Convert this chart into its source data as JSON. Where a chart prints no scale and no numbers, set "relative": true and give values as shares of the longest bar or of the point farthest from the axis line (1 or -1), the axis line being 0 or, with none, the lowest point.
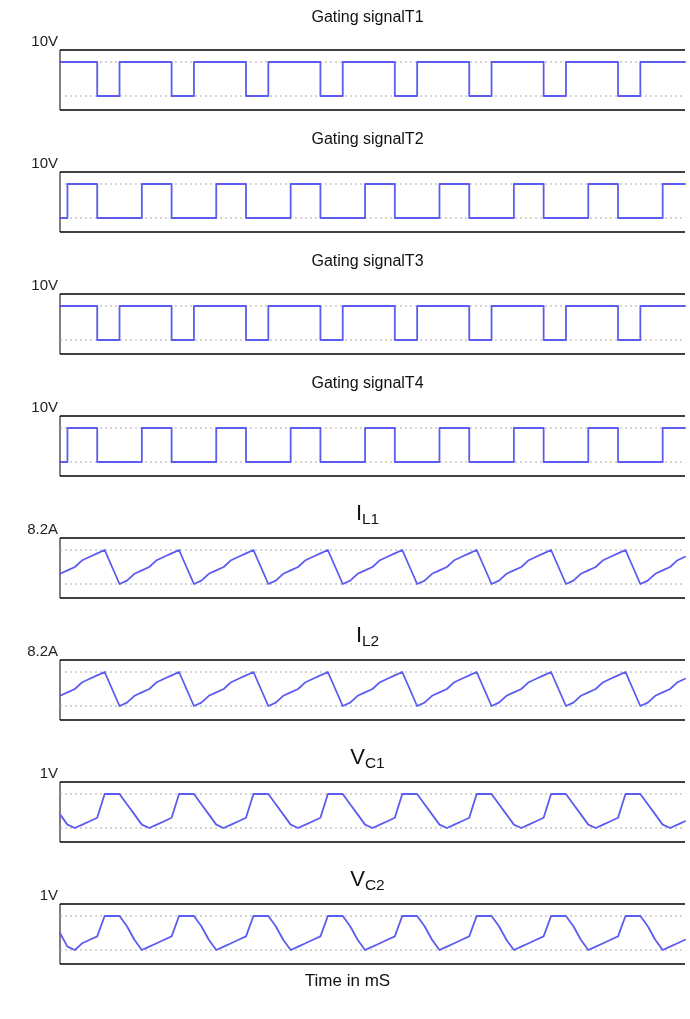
{
  "chart_data": [
    {
      "type": "step",
      "title": "Gating signalT1",
      "relative": true,
      "grid": "y",
      "annotations": [
        "10V"
      ],
      "categories": [
        null,
        null,
        null,
        null,
        null,
        null,
        null,
        null,
        null,
        null,
        null,
        null,
        null,
        null,
        null,
        null,
        null,
        null,
        null,
        null,
        null,
        null,
        null,
        null,
        null,
        null,
        null,
        null,
        null,
        null,
        null,
        null,
        null,
        null,
        null,
        null,
        null,
        null,
        null,
        null,
        null,
        null,
        null,
        null,
        null,
        null,
        null,
        null,
        null,
        null,
        null,
        null,
        null,
        null,
        null,
        null,
        null,
        null,
        null,
        null,
        null,
        null,
        null,
        null,
        null,
        null,
        null,
        null,
        null,
        null,
        null,
        null,
        null,
        null,
        null,
        null,
        null,
        null,
        null,
        null,
        null,
        null,
        null,
        null,
        null
      ],
      "series": [
        {
          "color": "#5c5cf0",
          "values": [
            1,
            1,
            1,
            1,
            1,
            0,
            0,
            0,
            1,
            1,
            1,
            1,
            1,
            1,
            1,
            0,
            0,
            0,
            1,
            1,
            1,
            1,
            1,
            1,
            1,
            0,
            0,
            0,
            1,
            1,
            1,
            1,
            1,
            1,
            1,
            0,
            0,
            0,
            1,
            1,
            1,
            1,
            1,
            1,
            1,
            0,
            0,
            0,
            1,
            1,
            1,
            1,
            1,
            1,
            1,
            0,
            0,
            0,
            1,
            1,
            1,
            1,
            1,
            1,
            1,
            0,
            0,
            0,
            1,
            1,
            1,
            1,
            1,
            1,
            1,
            0,
            0,
            0,
            1,
            1,
            1,
            1,
            1,
            1,
            1
          ]
        }
      ]
    },
    {
      "type": "step",
      "title": "Gating signalT2",
      "relative": true,
      "grid": "y",
      "annotations": [
        "10V"
      ],
      "categories": [
        null,
        null,
        null,
        null,
        null,
        null,
        null,
        null,
        null,
        null,
        null,
        null,
        null,
        null,
        null,
        null,
        null,
        null,
        null,
        null,
        null,
        null,
        null,
        null,
        null,
        null,
        null,
        null,
        null,
        null,
        null,
        null,
        null,
        null,
        null,
        null,
        null,
        null,
        null,
        null,
        null,
        null,
        null,
        null,
        null,
        null,
        null,
        null,
        null,
        null,
        null,
        null,
        null,
        null,
        null,
        null,
        null,
        null,
        null,
        null,
        null,
        null,
        null,
        null,
        null,
        null,
        null,
        null,
        null,
        null,
        null,
        null,
        null,
        null,
        null,
        null,
        null,
        null,
        null,
        null,
        null,
        null,
        null,
        null,
        null
      ],
      "series": [
        {
          "color": "#5c5cf0",
          "values": [
            0,
            1,
            1,
            1,
            1,
            0,
            0,
            0,
            0,
            0,
            0,
            1,
            1,
            1,
            1,
            0,
            0,
            0,
            0,
            0,
            0,
            1,
            1,
            1,
            1,
            0,
            0,
            0,
            0,
            0,
            0,
            1,
            1,
            1,
            1,
            0,
            0,
            0,
            0,
            0,
            0,
            1,
            1,
            1,
            1,
            0,
            0,
            0,
            0,
            0,
            0,
            1,
            1,
            1,
            1,
            0,
            0,
            0,
            0,
            0,
            0,
            1,
            1,
            1,
            1,
            0,
            0,
            0,
            0,
            0,
            0,
            1,
            1,
            1,
            1,
            0,
            0,
            0,
            0,
            0,
            0,
            1,
            1,
            1,
            1
          ]
        }
      ]
    },
    {
      "type": "step",
      "title": "Gating signalT3",
      "relative": true,
      "grid": "y",
      "annotations": [
        "10V"
      ],
      "categories": [
        null,
        null,
        null,
        null,
        null,
        null,
        null,
        null,
        null,
        null,
        null,
        null,
        null,
        null,
        null,
        null,
        null,
        null,
        null,
        null,
        null,
        null,
        null,
        null,
        null,
        null,
        null,
        null,
        null,
        null,
        null,
        null,
        null,
        null,
        null,
        null,
        null,
        null,
        null,
        null,
        null,
        null,
        null,
        null,
        null,
        null,
        null,
        null,
        null,
        null,
        null,
        null,
        null,
        null,
        null,
        null,
        null,
        null,
        null,
        null,
        null,
        null,
        null,
        null,
        null,
        null,
        null,
        null,
        null,
        null,
        null,
        null,
        null,
        null,
        null,
        null,
        null,
        null,
        null,
        null,
        null,
        null,
        null,
        null,
        null
      ],
      "series": [
        {
          "color": "#5c5cf0",
          "values": [
            1,
            1,
            1,
            1,
            1,
            0,
            0,
            0,
            1,
            1,
            1,
            1,
            1,
            1,
            1,
            0,
            0,
            0,
            1,
            1,
            1,
            1,
            1,
            1,
            1,
            0,
            0,
            0,
            1,
            1,
            1,
            1,
            1,
            1,
            1,
            0,
            0,
            0,
            1,
            1,
            1,
            1,
            1,
            1,
            1,
            0,
            0,
            0,
            1,
            1,
            1,
            1,
            1,
            1,
            1,
            0,
            0,
            0,
            1,
            1,
            1,
            1,
            1,
            1,
            1,
            0,
            0,
            0,
            1,
            1,
            1,
            1,
            1,
            1,
            1,
            0,
            0,
            0,
            1,
            1,
            1,
            1,
            1,
            1,
            1
          ]
        }
      ]
    },
    {
      "type": "step",
      "title": "Gating signalT4",
      "relative": true,
      "grid": "y",
      "annotations": [
        "10V"
      ],
      "categories": [
        null,
        null,
        null,
        null,
        null,
        null,
        null,
        null,
        null,
        null,
        null,
        null,
        null,
        null,
        null,
        null,
        null,
        null,
        null,
        null,
        null,
        null,
        null,
        null,
        null,
        null,
        null,
        null,
        null,
        null,
        null,
        null,
        null,
        null,
        null,
        null,
        null,
        null,
        null,
        null,
        null,
        null,
        null,
        null,
        null,
        null,
        null,
        null,
        null,
        null,
        null,
        null,
        null,
        null,
        null,
        null,
        null,
        null,
        null,
        null,
        null,
        null,
        null,
        null,
        null,
        null,
        null,
        null,
        null,
        null,
        null,
        null,
        null,
        null,
        null,
        null,
        null,
        null,
        null,
        null,
        null,
        null,
        null,
        null,
        null
      ],
      "series": [
        {
          "color": "#5c5cf0",
          "values": [
            0,
            1,
            1,
            1,
            1,
            0,
            0,
            0,
            0,
            0,
            0,
            1,
            1,
            1,
            1,
            0,
            0,
            0,
            0,
            0,
            0,
            1,
            1,
            1,
            1,
            0,
            0,
            0,
            0,
            0,
            0,
            1,
            1,
            1,
            1,
            0,
            0,
            0,
            0,
            0,
            0,
            1,
            1,
            1,
            1,
            0,
            0,
            0,
            0,
            0,
            0,
            1,
            1,
            1,
            1,
            0,
            0,
            0,
            0,
            0,
            0,
            1,
            1,
            1,
            1,
            0,
            0,
            0,
            0,
            0,
            0,
            1,
            1,
            1,
            1,
            0,
            0,
            0,
            0,
            0,
            0,
            1,
            1,
            1,
            1
          ]
        }
      ]
    },
    {
      "type": "line",
      "title": "I$_{L1}$",
      "relative": true,
      "grid": "y",
      "annotations": [
        "8.2A"
      ],
      "categories": [
        null,
        null,
        null,
        null,
        null,
        null,
        null,
        null,
        null,
        null,
        null,
        null,
        null,
        null,
        null,
        null,
        null,
        null,
        null,
        null,
        null,
        null,
        null,
        null,
        null,
        null,
        null,
        null,
        null,
        null,
        null,
        null,
        null,
        null,
        null,
        null,
        null,
        null,
        null,
        null,
        null,
        null,
        null,
        null,
        null,
        null,
        null,
        null,
        null,
        null,
        null,
        null,
        null,
        null,
        null,
        null,
        null,
        null,
        null,
        null,
        null,
        null,
        null,
        null,
        null,
        null,
        null,
        null,
        null,
        null,
        null,
        null,
        null,
        null,
        null,
        null,
        null,
        null,
        null,
        null,
        null,
        null,
        null,
        null,
        null
      ],
      "series": [
        {
          "color": "#5c5cf0",
          "values": [
            0.3,
            0.4,
            0.5,
            0.7,
            0.8,
            0.9,
            1,
            0.5,
            0,
            0.1,
            0.3,
            0.4,
            0.5,
            0.7,
            0.8,
            0.9,
            1,
            0.5,
            0,
            0.1,
            0.3,
            0.4,
            0.5,
            0.7,
            0.8,
            0.9,
            1,
            0.5,
            0,
            0.1,
            0.3,
            0.4,
            0.5,
            0.7,
            0.8,
            0.9,
            1,
            0.5,
            0,
            0.1,
            0.3,
            0.4,
            0.5,
            0.7,
            0.8,
            0.9,
            1,
            0.5,
            0,
            0.1,
            0.3,
            0.4,
            0.5,
            0.7,
            0.8,
            0.9,
            1,
            0.5,
            0,
            0.1,
            0.3,
            0.4,
            0.5,
            0.7,
            0.8,
            0.9,
            1,
            0.5,
            0,
            0.1,
            0.3,
            0.4,
            0.5,
            0.7,
            0.8,
            0.9,
            1,
            0.5,
            0,
            0.1,
            0.3,
            0.4,
            0.5,
            0.7,
            0.8
          ]
        }
      ]
    },
    {
      "type": "line",
      "title": "I$_{L2}$",
      "relative": true,
      "grid": "y",
      "annotations": [
        "8.2A"
      ],
      "categories": [
        null,
        null,
        null,
        null,
        null,
        null,
        null,
        null,
        null,
        null,
        null,
        null,
        null,
        null,
        null,
        null,
        null,
        null,
        null,
        null,
        null,
        null,
        null,
        null,
        null,
        null,
        null,
        null,
        null,
        null,
        null,
        null,
        null,
        null,
        null,
        null,
        null,
        null,
        null,
        null,
        null,
        null,
        null,
        null,
        null,
        null,
        null,
        null,
        null,
        null,
        null,
        null,
        null,
        null,
        null,
        null,
        null,
        null,
        null,
        null,
        null,
        null,
        null,
        null,
        null,
        null,
        null,
        null,
        null,
        null,
        null,
        null,
        null,
        null,
        null,
        null,
        null,
        null,
        null,
        null,
        null,
        null,
        null,
        null,
        null
      ],
      "series": [
        {
          "color": "#5c5cf0",
          "values": [
            0.3,
            0.4,
            0.5,
            0.7,
            0.8,
            0.9,
            1,
            0.5,
            0,
            0.1,
            0.3,
            0.4,
            0.5,
            0.7,
            0.8,
            0.9,
            1,
            0.5,
            0,
            0.1,
            0.3,
            0.4,
            0.5,
            0.7,
            0.8,
            0.9,
            1,
            0.5,
            0,
            0.1,
            0.3,
            0.4,
            0.5,
            0.7,
            0.8,
            0.9,
            1,
            0.5,
            0,
            0.1,
            0.3,
            0.4,
            0.5,
            0.7,
            0.8,
            0.9,
            1,
            0.5,
            0,
            0.1,
            0.3,
            0.4,
            0.5,
            0.7,
            0.8,
            0.9,
            1,
            0.5,
            0,
            0.1,
            0.3,
            0.4,
            0.5,
            0.7,
            0.8,
            0.9,
            1,
            0.5,
            0,
            0.1,
            0.3,
            0.4,
            0.5,
            0.7,
            0.8,
            0.9,
            1,
            0.5,
            0,
            0.1,
            0.3,
            0.4,
            0.5,
            0.7,
            0.8
          ]
        }
      ]
    },
    {
      "type": "line",
      "title": "V$_{C1}$",
      "relative": true,
      "grid": "y",
      "annotations": [
        "1V"
      ],
      "categories": [
        null,
        null,
        null,
        null,
        null,
        null,
        null,
        null,
        null,
        null,
        null,
        null,
        null,
        null,
        null,
        null,
        null,
        null,
        null,
        null,
        null,
        null,
        null,
        null,
        null,
        null,
        null,
        null,
        null,
        null,
        null,
        null,
        null,
        null,
        null,
        null,
        null,
        null,
        null,
        null,
        null,
        null,
        null,
        null,
        null,
        null,
        null,
        null,
        null,
        null,
        null,
        null,
        null,
        null,
        null,
        null,
        null,
        null,
        null,
        null,
        null,
        null,
        null,
        null,
        null,
        null,
        null,
        null,
        null,
        null,
        null,
        null,
        null,
        null,
        null,
        null,
        null,
        null,
        null,
        null,
        null,
        null,
        null,
        null,
        null
      ],
      "series": [
        {
          "color": "#5c5cf0",
          "values": [
            0.4,
            0.1,
            0,
            0.1,
            0.2,
            0.3,
            1,
            1,
            1,
            0.7,
            0.4,
            0.1,
            0,
            0.1,
            0.2,
            0.3,
            1,
            1,
            1,
            0.7,
            0.4,
            0.1,
            0,
            0.1,
            0.2,
            0.3,
            1,
            1,
            1,
            0.7,
            0.4,
            0.1,
            0,
            0.1,
            0.2,
            0.3,
            1,
            1,
            1,
            0.7,
            0.4,
            0.1,
            0,
            0.1,
            0.2,
            0.3,
            1,
            1,
            1,
            0.7,
            0.4,
            0.1,
            0,
            0.1,
            0.2,
            0.3,
            1,
            1,
            1,
            0.7,
            0.4,
            0.1,
            0,
            0.1,
            0.2,
            0.3,
            1,
            1,
            1,
            0.7,
            0.4,
            0.1,
            0,
            0.1,
            0.2,
            0.3,
            1,
            1,
            1,
            0.7,
            0.4,
            0.1,
            0,
            0.1,
            0.2
          ]
        }
      ]
    },
    {
      "type": "line",
      "title": "V$_{C2}$",
      "relative": true,
      "grid": "y",
      "annotations": [
        "1V"
      ],
      "xlabel": "Time in mS",
      "categories": [
        null,
        null,
        null,
        null,
        null,
        null,
        null,
        null,
        null,
        null,
        null,
        null,
        null,
        null,
        null,
        null,
        null,
        null,
        null,
        null,
        null,
        null,
        null,
        null,
        null,
        null,
        null,
        null,
        null,
        null,
        null,
        null,
        null,
        null,
        null,
        null,
        null,
        null,
        null,
        null,
        null,
        null,
        null,
        null,
        null,
        null,
        null,
        null,
        null,
        null,
        null,
        null,
        null,
        null,
        null,
        null,
        null,
        null,
        null,
        null,
        null,
        null,
        null,
        null,
        null,
        null,
        null,
        null,
        null,
        null,
        null,
        null,
        null,
        null,
        null,
        null,
        null,
        null,
        null,
        null,
        null,
        null,
        null,
        null,
        null
      ],
      "series": [
        {
          "color": "#5c5cf0",
          "values": [
            0.5,
            0.1,
            0,
            0.2,
            0.3,
            0.4,
            1,
            1,
            1,
            0.7,
            0.3,
            0,
            0.1,
            0.2,
            0.3,
            0.4,
            1,
            1,
            1,
            0.7,
            0.3,
            0,
            0.1,
            0.2,
            0.3,
            0.4,
            1,
            1,
            1,
            0.7,
            0.3,
            0,
            0.1,
            0.2,
            0.3,
            0.4,
            1,
            1,
            1,
            0.7,
            0.3,
            0,
            0.1,
            0.2,
            0.3,
            0.4,
            1,
            1,
            1,
            0.7,
            0.3,
            0,
            0.1,
            0.2,
            0.3,
            0.4,
            1,
            1,
            1,
            0.7,
            0.3,
            0,
            0.1,
            0.2,
            0.3,
            0.4,
            1,
            1,
            1,
            0.7,
            0.3,
            0,
            0.1,
            0.2,
            0.3,
            0.4,
            1,
            1,
            1,
            0.7,
            0.3,
            0,
            0.1,
            0.2,
            0.3
          ]
        }
      ]
    }
  ]
}
